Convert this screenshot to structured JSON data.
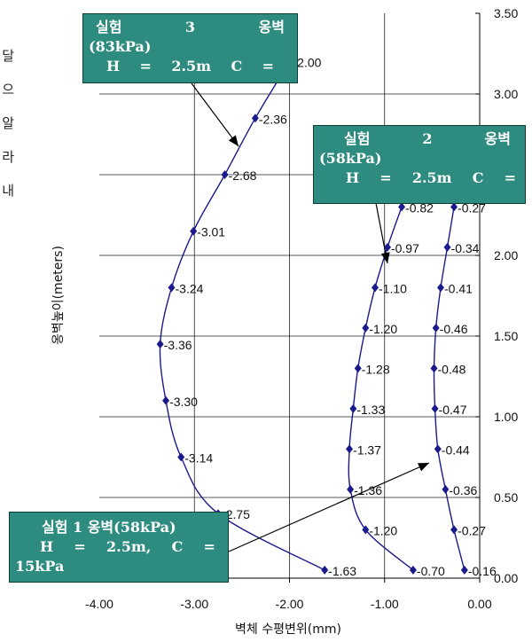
{
  "side_text": [
    "달",
    "으",
    "알",
    "라",
    "내"
  ],
  "callouts": {
    "test3": {
      "title_parts": [
        "실험",
        "3",
        "옹벽"
      ],
      "pressure": "(83kPa)",
      "params_parts": [
        "H",
        "=",
        "2.5m",
        "C",
        "="
      ]
    },
    "test2": {
      "title_parts": [
        "실험",
        "2",
        "옹벽"
      ],
      "pressure": "(58kPa)",
      "params_parts": [
        "H",
        "=",
        "2.5m",
        "C",
        "="
      ]
    },
    "test1": {
      "title": "실험 1 옹벽(58kPa)",
      "params_parts": [
        "H",
        "=",
        "2.5m,",
        "C",
        "="
      ],
      "extra": "15kPa"
    }
  },
  "chart_data": {
    "type": "line",
    "xlabel": "벽체 수평변위(mm)",
    "ylabel": "옹벽높이(meters)",
    "xlim": [
      -4.0,
      0.0
    ],
    "ylim": [
      0.0,
      3.5
    ],
    "x_ticks": [
      "-4.00",
      "-3.00",
      "-2.00",
      "-1.00",
      "0.00"
    ],
    "y_ticks": [
      "0.00",
      "0.50",
      "1.00",
      "1.50",
      "2.00",
      "2.50",
      "3.00",
      "3.50"
    ],
    "grid": true,
    "series": [
      {
        "x": [
          -0.7,
          -1.2,
          -1.36,
          -1.37,
          -1.33,
          -1.28,
          -1.2,
          -1.1,
          -0.97,
          -0.82
        ],
        "y": [
          0.05,
          0.3,
          0.55,
          0.8,
          1.05,
          1.3,
          1.55,
          1.8,
          2.05,
          2.3
        ],
        "labels": [
          "-0.70",
          "-1.20",
          "-1.36",
          "-1.37",
          "-1.33",
          "-1.28",
          "-1.20",
          "-1.10",
          "-0.97",
          "-0.82"
        ]
      },
      {
        "x": [
          -0.16,
          -0.27,
          -0.36,
          -0.44,
          -0.47,
          -0.48,
          -0.46,
          -0.41,
          -0.34,
          -0.27
        ],
        "y": [
          0.05,
          0.3,
          0.55,
          0.8,
          1.05,
          1.3,
          1.55,
          1.8,
          2.05,
          2.3
        ],
        "labels": [
          "-0.16",
          "-0.27",
          "-0.36",
          "-0.44",
          "-0.47",
          "-0.48",
          "-0.46",
          "-0.41",
          "-0.34",
          "-0.27"
        ]
      },
      {
        "x": [
          -1.63,
          -2.75,
          -3.14,
          -3.3,
          -3.36,
          -3.24,
          -3.01,
          -2.68,
          -2.36,
          -2.0
        ],
        "y": [
          0.05,
          0.4,
          0.75,
          1.1,
          1.45,
          1.8,
          2.15,
          2.5,
          2.85,
          3.2
        ],
        "labels": [
          "-1.63",
          "-2.75",
          "-3.14",
          "-3.30",
          "-3.36",
          "-3.24",
          "-3.01",
          "-2.68",
          "-2.36",
          "-2.00"
        ]
      }
    ],
    "line_color": "#1a1a8c",
    "callout_color": "#2e8b7f"
  }
}
